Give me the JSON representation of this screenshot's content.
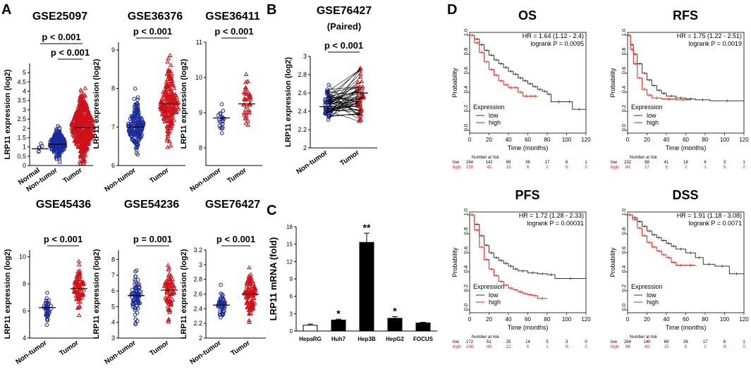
{
  "colors": {
    "normal": "#1a2a9c",
    "tumor": "#d0111a",
    "axis": "#000000",
    "km_low": "#333333",
    "km_high": "#e8211a",
    "bar_hepa": "#ffffff",
    "bar_fill": "#000000"
  },
  "panels": {
    "A": {
      "label": "A"
    },
    "B": {
      "label": "B",
      "subtitle": "(Paired)"
    },
    "C": {
      "label": "C"
    },
    "D": {
      "label": "D"
    }
  },
  "chart_data": [
    {
      "id": "a1",
      "type": "scatter",
      "title": "GSE25097",
      "ylabel": "LRP11 expression (log2)",
      "categories": [
        "Normal",
        "Non-tumor",
        "Tumor"
      ],
      "ylim": [
        0,
        5.5
      ],
      "yticks": [
        0,
        0.5,
        1,
        1.5,
        2,
        2.5,
        3,
        3.5,
        4,
        4.5,
        5
      ],
      "groups": [
        {
          "n": 6,
          "mean": 0.9,
          "sd": 0.25,
          "color": "normal",
          "marker": "circle"
        },
        {
          "n": 200,
          "mean": 1.15,
          "sd": 0.35,
          "color": "normal",
          "marker": "square"
        },
        {
          "n": 500,
          "mean": 2.05,
          "sd": 0.85,
          "color": "tumor",
          "marker": "triangle"
        }
      ],
      "comparisons": [
        {
          "text": "p < 0.001",
          "from": 1,
          "to": 2,
          "level": 1
        },
        {
          "text": "p < 0.001",
          "from": 0,
          "to": 2,
          "level": 2
        }
      ]
    },
    {
      "id": "a2",
      "type": "scatter",
      "title": "GSE36376",
      "ylabel": "LRP11 expression (log2)",
      "categories": [
        "Non-tumor",
        "Tumor"
      ],
      "ylim": [
        6,
        9.2
      ],
      "yticks": [
        6,
        7,
        8,
        9
      ],
      "groups": [
        {
          "n": 193,
          "mean": 7.0,
          "sd": 0.28,
          "color": "normal",
          "marker": "circle"
        },
        {
          "n": 240,
          "mean": 7.6,
          "sd": 0.38,
          "color": "tumor",
          "marker": "triangle"
        }
      ],
      "comparisons": [
        {
          "text": "p < 0.001",
          "from": 0,
          "to": 1,
          "level": 1
        }
      ]
    },
    {
      "id": "a3",
      "type": "scatter",
      "title": "GSE36411",
      "ylabel": "LRP11 expression (log2)",
      "categories": [
        "Non-tumor",
        "Tumor"
      ],
      "ylim": [
        7.5,
        11
      ],
      "yticks": [
        8,
        9,
        10,
        11
      ],
      "groups": [
        {
          "n": 21,
          "mean": 8.85,
          "sd": 0.22,
          "color": "normal",
          "marker": "circle"
        },
        {
          "n": 42,
          "mean": 9.25,
          "sd": 0.4,
          "color": "tumor",
          "marker": "triangle"
        }
      ],
      "comparisons": [
        {
          "text": "p < 0.001",
          "from": 0,
          "to": 1,
          "level": 1
        }
      ]
    },
    {
      "id": "a4",
      "type": "scatter",
      "title": "GSE45436",
      "ylabel": "LRP11 expression (log2)",
      "categories": [
        "Non-tumor",
        "Tumor"
      ],
      "ylim": [
        4,
        10.5
      ],
      "yticks": [
        4,
        6,
        8,
        10
      ],
      "groups": [
        {
          "n": 39,
          "mean": 6.25,
          "sd": 0.4,
          "color": "normal",
          "marker": "circle"
        },
        {
          "n": 95,
          "mean": 7.65,
          "sd": 0.7,
          "color": "tumor",
          "marker": "triangle"
        }
      ],
      "comparisons": [
        {
          "text": "p < 0.001",
          "from": 0,
          "to": 1,
          "level": 1
        }
      ]
    },
    {
      "id": "a5",
      "type": "scatter",
      "title": "GSE54236",
      "ylabel": "LRP11 expression (log2)",
      "categories": [
        "Non-tumor",
        "Tumor"
      ],
      "ylim": [
        3,
        8.6
      ],
      "yticks": [
        3,
        4,
        5,
        6,
        7,
        8
      ],
      "groups": [
        {
          "n": 80,
          "mean": 5.7,
          "sd": 0.7,
          "color": "normal",
          "marker": "circle"
        },
        {
          "n": 81,
          "mean": 6.05,
          "sd": 0.75,
          "color": "tumor",
          "marker": "triangle"
        }
      ],
      "comparisons": [
        {
          "text": "p = 0.001",
          "from": 0,
          "to": 1,
          "level": 1
        }
      ]
    },
    {
      "id": "a6",
      "type": "scatter",
      "title": "GSE76427",
      "ylabel": "LRP11 expression (log2)",
      "categories": [
        "Non-tumor",
        "Tumor"
      ],
      "ylim": [
        2.0,
        3.2
      ],
      "yticks": [
        2.0,
        2.2,
        2.4,
        2.6,
        2.8,
        3.0,
        3.2
      ],
      "groups": [
        {
          "n": 52,
          "mean": 2.45,
          "sd": 0.1,
          "color": "normal",
          "marker": "circle"
        },
        {
          "n": 115,
          "mean": 2.6,
          "sd": 0.15,
          "color": "tumor",
          "marker": "triangle"
        }
      ],
      "comparisons": [
        {
          "text": "p < 0.001",
          "from": 0,
          "to": 1,
          "level": 1
        }
      ]
    },
    {
      "id": "b",
      "type": "paired",
      "title": "GSE76427",
      "ylabel": "LRP11 expression (log2)",
      "categories": [
        "Non-tumor",
        "Tumor"
      ],
      "ylim": [
        2.0,
        3.0
      ],
      "yticks": [
        2.0,
        2.2,
        2.4,
        2.6,
        2.8,
        3.0
      ],
      "groups": [
        {
          "n": 52,
          "mean": 2.45,
          "sd": 0.1,
          "color": "normal",
          "marker": "circle"
        },
        {
          "n": 52,
          "mean": 2.6,
          "sd": 0.15,
          "color": "tumor",
          "marker": "triangle"
        }
      ],
      "comparisons": [
        {
          "text": "p < 0.001",
          "from": 0,
          "to": 1,
          "level": 1
        }
      ]
    },
    {
      "id": "c",
      "type": "bar",
      "ylabel": "LRP11 mRNA (fold)",
      "categories": [
        "HepaRG",
        "Huh7",
        "Hep3B",
        "HepG2",
        "FOCUS"
      ],
      "values": [
        1.0,
        1.9,
        15.3,
        2.2,
        1.4
      ],
      "errors": [
        0.2,
        0.15,
        1.6,
        0.3,
        0.1
      ],
      "significance": [
        "",
        "*",
        "**",
        "*",
        ""
      ],
      "ylim": [
        0,
        18
      ],
      "yticks": [
        0,
        3,
        6,
        9,
        12,
        15,
        18
      ]
    },
    {
      "id": "os",
      "type": "km",
      "title": "OS",
      "hr": "HR = 1.64 (1.12 - 2.4)",
      "logrank": "logrank P = 0.0095",
      "xlabel": "Time (months)",
      "ylabel": "Probability",
      "xlim": [
        0,
        120
      ],
      "xticks": [
        0,
        20,
        40,
        60,
        80,
        100,
        120
      ],
      "yticks": [
        0,
        0.2,
        0.4,
        0.6,
        0.8,
        1.0
      ],
      "legend_title": "Expression",
      "legend": [
        "low",
        "high"
      ],
      "risk_title": "Number at risk",
      "risk_low": [
        "264",
        "142",
        "69",
        "36",
        "17",
        "6",
        "1"
      ],
      "risk_high": [
        "100",
        "40",
        "15",
        "6",
        "2",
        "0",
        "0"
      ],
      "low": [
        [
          0,
          1
        ],
        [
          5,
          0.96
        ],
        [
          10,
          0.9
        ],
        [
          15,
          0.84
        ],
        [
          20,
          0.79
        ],
        [
          25,
          0.74
        ],
        [
          30,
          0.7
        ],
        [
          35,
          0.66
        ],
        [
          40,
          0.62
        ],
        [
          45,
          0.59
        ],
        [
          50,
          0.55
        ],
        [
          55,
          0.52
        ],
        [
          60,
          0.49
        ],
        [
          65,
          0.46
        ],
        [
          70,
          0.43
        ],
        [
          75,
          0.41
        ],
        [
          80,
          0.38
        ],
        [
          84,
          0.3
        ],
        [
          100,
          0.3
        ],
        [
          106,
          0.22
        ],
        [
          120,
          0.22
        ]
      ],
      "high": [
        [
          0,
          1
        ],
        [
          5,
          0.92
        ],
        [
          10,
          0.82
        ],
        [
          15,
          0.72
        ],
        [
          20,
          0.64
        ],
        [
          25,
          0.58
        ],
        [
          30,
          0.52
        ],
        [
          35,
          0.48
        ],
        [
          40,
          0.45
        ],
        [
          45,
          0.45
        ],
        [
          50,
          0.4
        ],
        [
          55,
          0.36
        ],
        [
          62,
          0.36
        ],
        [
          65,
          0.36
        ],
        [
          70,
          0.36
        ]
      ]
    },
    {
      "id": "rfs",
      "type": "km",
      "title": "RFS",
      "hr": "HR = 1.75 (1.22 - 2.51)",
      "logrank": "logrank P = 0.0019",
      "xlabel": "Time (months)",
      "ylabel": "Probability",
      "xlim": [
        0,
        120
      ],
      "xticks": [
        0,
        20,
        40,
        60,
        80,
        100,
        120
      ],
      "yticks": [
        0,
        0.2,
        0.4,
        0.6,
        0.8,
        1.0
      ],
      "legend_title": "Expression",
      "legend": [
        "low",
        "high"
      ],
      "risk_title": "Number at risk",
      "risk_low": [
        "232",
        "88",
        "41",
        "18",
        "6",
        "3",
        "1"
      ],
      "risk_high": [
        "84",
        "17",
        "6",
        "2",
        "1",
        "0",
        "0"
      ],
      "low": [
        [
          0,
          1
        ],
        [
          3,
          0.9
        ],
        [
          6,
          0.8
        ],
        [
          10,
          0.7
        ],
        [
          15,
          0.6
        ],
        [
          20,
          0.53
        ],
        [
          25,
          0.47
        ],
        [
          30,
          0.42
        ],
        [
          35,
          0.39
        ],
        [
          40,
          0.36
        ],
        [
          50,
          0.34
        ],
        [
          60,
          0.33
        ],
        [
          70,
          0.32
        ],
        [
          85,
          0.31
        ],
        [
          120,
          0.31
        ]
      ],
      "high": [
        [
          0,
          1
        ],
        [
          3,
          0.85
        ],
        [
          6,
          0.7
        ],
        [
          10,
          0.55
        ],
        [
          15,
          0.43
        ],
        [
          20,
          0.37
        ],
        [
          25,
          0.34
        ],
        [
          35,
          0.33
        ],
        [
          50,
          0.32
        ],
        [
          65,
          0.32
        ]
      ]
    },
    {
      "id": "pfs",
      "type": "km",
      "title": "PFS",
      "hr": "HR = 1.72 (1.28 - 2.33)",
      "logrank": "logrank P = 0.00031",
      "xlabel": "Time (months)",
      "ylabel": "Probability",
      "xlim": [
        0,
        120
      ],
      "xticks": [
        0,
        20,
        40,
        60,
        80,
        100,
        120
      ],
      "yticks": [
        0,
        0.2,
        0.4,
        0.6,
        0.8,
        1.0
      ],
      "legend_title": "Expression",
      "legend": [
        "low",
        "high"
      ],
      "risk_title": "Number at risk",
      "risk_low": [
        "172",
        "61",
        "25",
        "14",
        "5",
        "3",
        "0"
      ],
      "risk_high": [
        "198",
        "49",
        "22",
        "6",
        "1",
        "0",
        "0"
      ],
      "low": [
        [
          0,
          1
        ],
        [
          5,
          0.9
        ],
        [
          10,
          0.78
        ],
        [
          15,
          0.68
        ],
        [
          20,
          0.6
        ],
        [
          25,
          0.55
        ],
        [
          30,
          0.52
        ],
        [
          35,
          0.49
        ],
        [
          40,
          0.46
        ],
        [
          45,
          0.43
        ],
        [
          50,
          0.41
        ],
        [
          60,
          0.39
        ],
        [
          70,
          0.38
        ],
        [
          80,
          0.37
        ],
        [
          88,
          0.33
        ],
        [
          120,
          0.33
        ]
      ],
      "high": [
        [
          0,
          1
        ],
        [
          5,
          0.84
        ],
        [
          10,
          0.66
        ],
        [
          15,
          0.53
        ],
        [
          20,
          0.43
        ],
        [
          25,
          0.36
        ],
        [
          30,
          0.3
        ],
        [
          35,
          0.26
        ],
        [
          40,
          0.23
        ],
        [
          45,
          0.21
        ],
        [
          50,
          0.19
        ],
        [
          55,
          0.17
        ],
        [
          60,
          0.16
        ],
        [
          65,
          0.15
        ],
        [
          70,
          0.12
        ],
        [
          80,
          0.12
        ]
      ]
    },
    {
      "id": "dss",
      "type": "km",
      "title": "DSS",
      "hr": "HR = 1.91 (1.18 - 3.08)",
      "logrank": "logrank P = 0.0071",
      "xlabel": "Time (months)",
      "ylabel": "Probability",
      "xlim": [
        0,
        120
      ],
      "xticks": [
        0,
        20,
        40,
        60,
        80,
        100,
        120
      ],
      "yticks": [
        0,
        0.2,
        0.4,
        0.6,
        0.8,
        1.0
      ],
      "legend_title": "Expression",
      "legend": [
        "low",
        "high"
      ],
      "risk_title": "Number at risk",
      "risk_low": [
        "264",
        "140",
        "68",
        "36",
        "17",
        "6",
        "1"
      ],
      "risk_high": [
        "98",
        "40",
        "15",
        "6",
        "2",
        "0",
        "0"
      ],
      "low": [
        [
          0,
          1
        ],
        [
          5,
          0.97
        ],
        [
          10,
          0.93
        ],
        [
          15,
          0.88
        ],
        [
          20,
          0.83
        ],
        [
          25,
          0.79
        ],
        [
          30,
          0.76
        ],
        [
          35,
          0.73
        ],
        [
          40,
          0.7
        ],
        [
          45,
          0.67
        ],
        [
          50,
          0.64
        ],
        [
          60,
          0.6
        ],
        [
          70,
          0.55
        ],
        [
          78,
          0.48
        ],
        [
          90,
          0.46
        ],
        [
          105,
          0.38
        ],
        [
          120,
          0.38
        ]
      ],
      "high": [
        [
          0,
          1
        ],
        [
          5,
          0.95
        ],
        [
          10,
          0.86
        ],
        [
          15,
          0.78
        ],
        [
          20,
          0.71
        ],
        [
          25,
          0.66
        ],
        [
          30,
          0.62
        ],
        [
          35,
          0.58
        ],
        [
          40,
          0.55
        ],
        [
          45,
          0.5
        ],
        [
          50,
          0.47
        ],
        [
          60,
          0.47
        ],
        [
          70,
          0.47
        ]
      ]
    }
  ]
}
